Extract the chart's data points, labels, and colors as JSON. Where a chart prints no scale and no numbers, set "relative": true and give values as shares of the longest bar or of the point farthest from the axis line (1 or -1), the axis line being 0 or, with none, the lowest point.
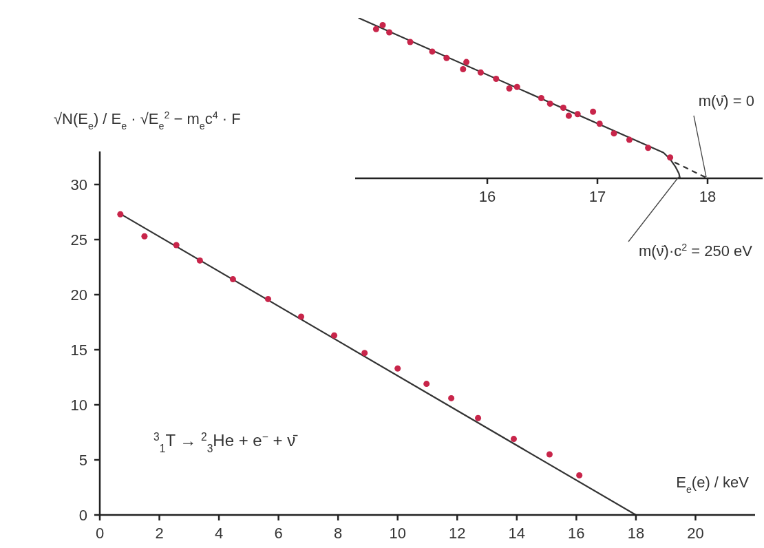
{
  "chart_data": [
    {
      "type": "scatter",
      "ylabel": "√N(E$_{e}$) / E$_{e}$ · √E$_{e}$$^{2}$ − m$_{e}$c$^{4}$ · F",
      "xlabel": "E$_{e}$(e) / keV",
      "xlim": [
        0,
        22
      ],
      "ylim": [
        0,
        33
      ],
      "xticks": [
        0,
        2,
        4,
        6,
        8,
        10,
        12,
        14,
        16,
        18,
        20
      ],
      "yticks": [
        0,
        5,
        10,
        15,
        20,
        25,
        30
      ],
      "grid": false,
      "legend": false,
      "series": [
        {
          "type": "scatter",
          "marker": "circle",
          "color": "#c8254a",
          "x": [
            0.69,
            1.5,
            2.57,
            3.36,
            4.47,
            5.65,
            6.76,
            7.87,
            8.89,
            10.0,
            10.97,
            11.8,
            12.7,
            13.9,
            15.1,
            16.1
          ],
          "values": [
            27.3,
            25.3,
            24.5,
            23.1,
            21.4,
            19.6,
            18.0,
            16.3,
            14.7,
            13.3,
            11.9,
            10.6,
            8.8,
            6.9,
            5.5,
            3.6
          ]
        },
        {
          "type": "line",
          "color": "#333333",
          "line_style": "solid",
          "x": [
            0.65,
            18.0
          ],
          "values": [
            27.4,
            0
          ]
        }
      ],
      "annotations": [
        "$^{3}$$_{1}$T → $^{2}$$_{3}$He + e$^{−}$ + ν̄"
      ]
    },
    {
      "type": "scatter",
      "relative": true,
      "xlim": [
        14.8,
        18.5
      ],
      "xticks": [
        16,
        17,
        18
      ],
      "grid": false,
      "legend": false,
      "series": [
        {
          "type": "scatter",
          "marker": "circle",
          "color": "#c8254a",
          "x": [
            14.99,
            15.05,
            15.11,
            15.3,
            15.5,
            15.63,
            15.78,
            15.81,
            15.94,
            16.08,
            16.2,
            16.27,
            16.49,
            16.57,
            16.69,
            16.74,
            16.82,
            16.96,
            17.02,
            17.15,
            17.29,
            17.46,
            17.66
          ],
          "values": [
            0.93,
            0.955,
            0.91,
            0.85,
            0.79,
            0.75,
            0.68,
            0.725,
            0.66,
            0.62,
            0.56,
            0.57,
            0.5,
            0.465,
            0.44,
            0.39,
            0.4,
            0.415,
            0.34,
            0.28,
            0.24,
            0.19,
            0.13
          ]
        },
        {
          "type": "line",
          "color": "#333333",
          "line_style": "solid",
          "x": [
            14.83,
            17.6,
            17.66,
            17.71,
            17.74,
            17.75
          ],
          "values": [
            1.0,
            0.16,
            0.12,
            0.07,
            0.03,
            0
          ]
        },
        {
          "type": "line",
          "color": "#333333",
          "line_style": "dashed",
          "x": [
            17.7,
            18.0
          ],
          "values": [
            0.1,
            0
          ]
        }
      ],
      "annotations": [
        {
          "text": "m(ν̄) = 0",
          "x": 18.0,
          "y": 0
        },
        {
          "text": "m(ν̄)·c$^{2}$ = 250 eV",
          "x": 17.75,
          "y": 0
        }
      ]
    }
  ]
}
